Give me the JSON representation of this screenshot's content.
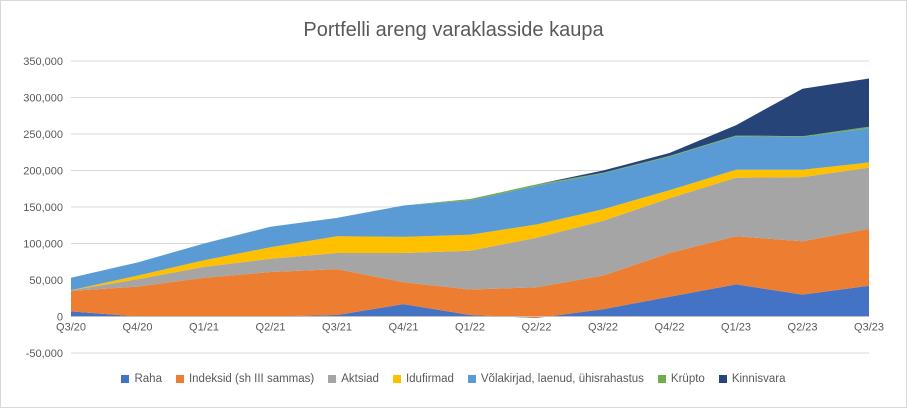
{
  "chart_data": {
    "type": "area",
    "stacked": true,
    "title": "Portfelli areng varaklasside kaupa",
    "xlabel": "",
    "ylabel": "",
    "categories": [
      "Q3/20",
      "Q4/20",
      "Q1/21",
      "Q2/21",
      "Q3/21",
      "Q4/21",
      "Q1/22",
      "Q2/22",
      "Q3/22",
      "Q4/22",
      "Q1/23",
      "Q2/23",
      "Q3/23"
    ],
    "ylim": [
      -50000,
      350000
    ],
    "yticks": [
      -50000,
      0,
      50000,
      100000,
      150000,
      200000,
      250000,
      300000,
      350000
    ],
    "ytick_labels": [
      "-50,000",
      "0",
      "50,000",
      "100,000",
      "150,000",
      "200,000",
      "250,000",
      "300,000",
      "350,000"
    ],
    "grid": true,
    "legend_position": "bottom",
    "series": [
      {
        "name": "Raha",
        "color": "#4472c4",
        "values": [
          7000,
          0,
          0,
          0,
          2000,
          17000,
          2000,
          -2000,
          10000,
          27000,
          44000,
          30000,
          42000
        ]
      },
      {
        "name": "Indeksid (sh III sammas)",
        "color": "#ed7d31",
        "values": [
          28000,
          41000,
          53000,
          61000,
          63000,
          30000,
          35000,
          42000,
          46000,
          60000,
          66000,
          73000,
          78000
        ]
      },
      {
        "name": "Aktsiad",
        "color": "#a5a5a5",
        "values": [
          1000,
          10000,
          15000,
          18000,
          22000,
          40000,
          53000,
          68000,
          75000,
          75000,
          80000,
          88000,
          84000
        ]
      },
      {
        "name": "Idufirmad",
        "color": "#ffc000",
        "values": [
          0,
          5000,
          9000,
          16000,
          23000,
          22000,
          22000,
          18000,
          16000,
          11000,
          11000,
          10000,
          7000
        ]
      },
      {
        "name": "Võlakirjad, laenud, ühisrahastus",
        "color": "#5b9bd5",
        "values": [
          17000,
          18000,
          23000,
          28000,
          25000,
          43000,
          47000,
          53000,
          49000,
          46000,
          46000,
          45000,
          47000
        ]
      },
      {
        "name": "Krüpto",
        "color": "#70ad47",
        "values": [
          0,
          0,
          0,
          0,
          0,
          0,
          2000,
          2000,
          1000,
          1000,
          1000,
          1000,
          2000
        ]
      },
      {
        "name": "Kinnisvara",
        "color": "#264478",
        "values": [
          0,
          0,
          0,
          0,
          0,
          0,
          0,
          0,
          3000,
          4000,
          14000,
          65000,
          66000
        ]
      }
    ]
  }
}
